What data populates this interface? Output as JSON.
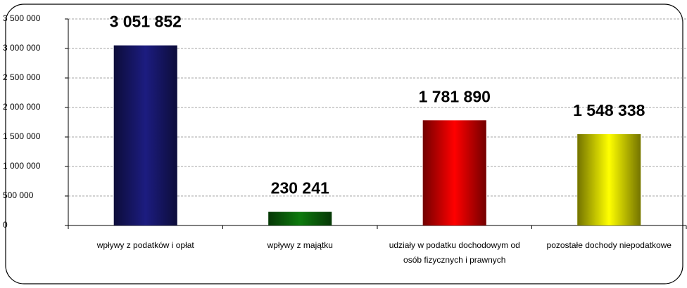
{
  "chart_data": {
    "type": "bar",
    "categories": [
      "wpływy z podatków i opłat",
      "wpływy z majątku",
      "udziały w podatku dochodowym od osób fizycznych i prawnych",
      "pozostałe dochody niepodatkowe"
    ],
    "values": [
      3051852,
      230241,
      1781890,
      1548338
    ],
    "value_labels": [
      "3 051 852",
      "230 241",
      "1 781 890",
      "1 548 338"
    ],
    "colors": [
      "#1c1c80",
      "#0d7a0d",
      "#ff0000",
      "#ffff00"
    ],
    "ylim": [
      0,
      3500000
    ],
    "yticks": [
      0,
      {
        "value": 500000,
        "label": "500 000"
      },
      {
        "value": 1000000,
        "label": "1 000 000"
      },
      {
        "value": 1500000,
        "label": "1 500 000"
      },
      {
        "value": 2000000,
        "label": "2 000 000"
      },
      {
        "value": 2500000,
        "label": "2 500 000"
      },
      {
        "value": 3000000,
        "label": "3 000 000"
      },
      {
        "value": 3500000,
        "label": "3 500 000"
      }
    ],
    "grid": true
  }
}
